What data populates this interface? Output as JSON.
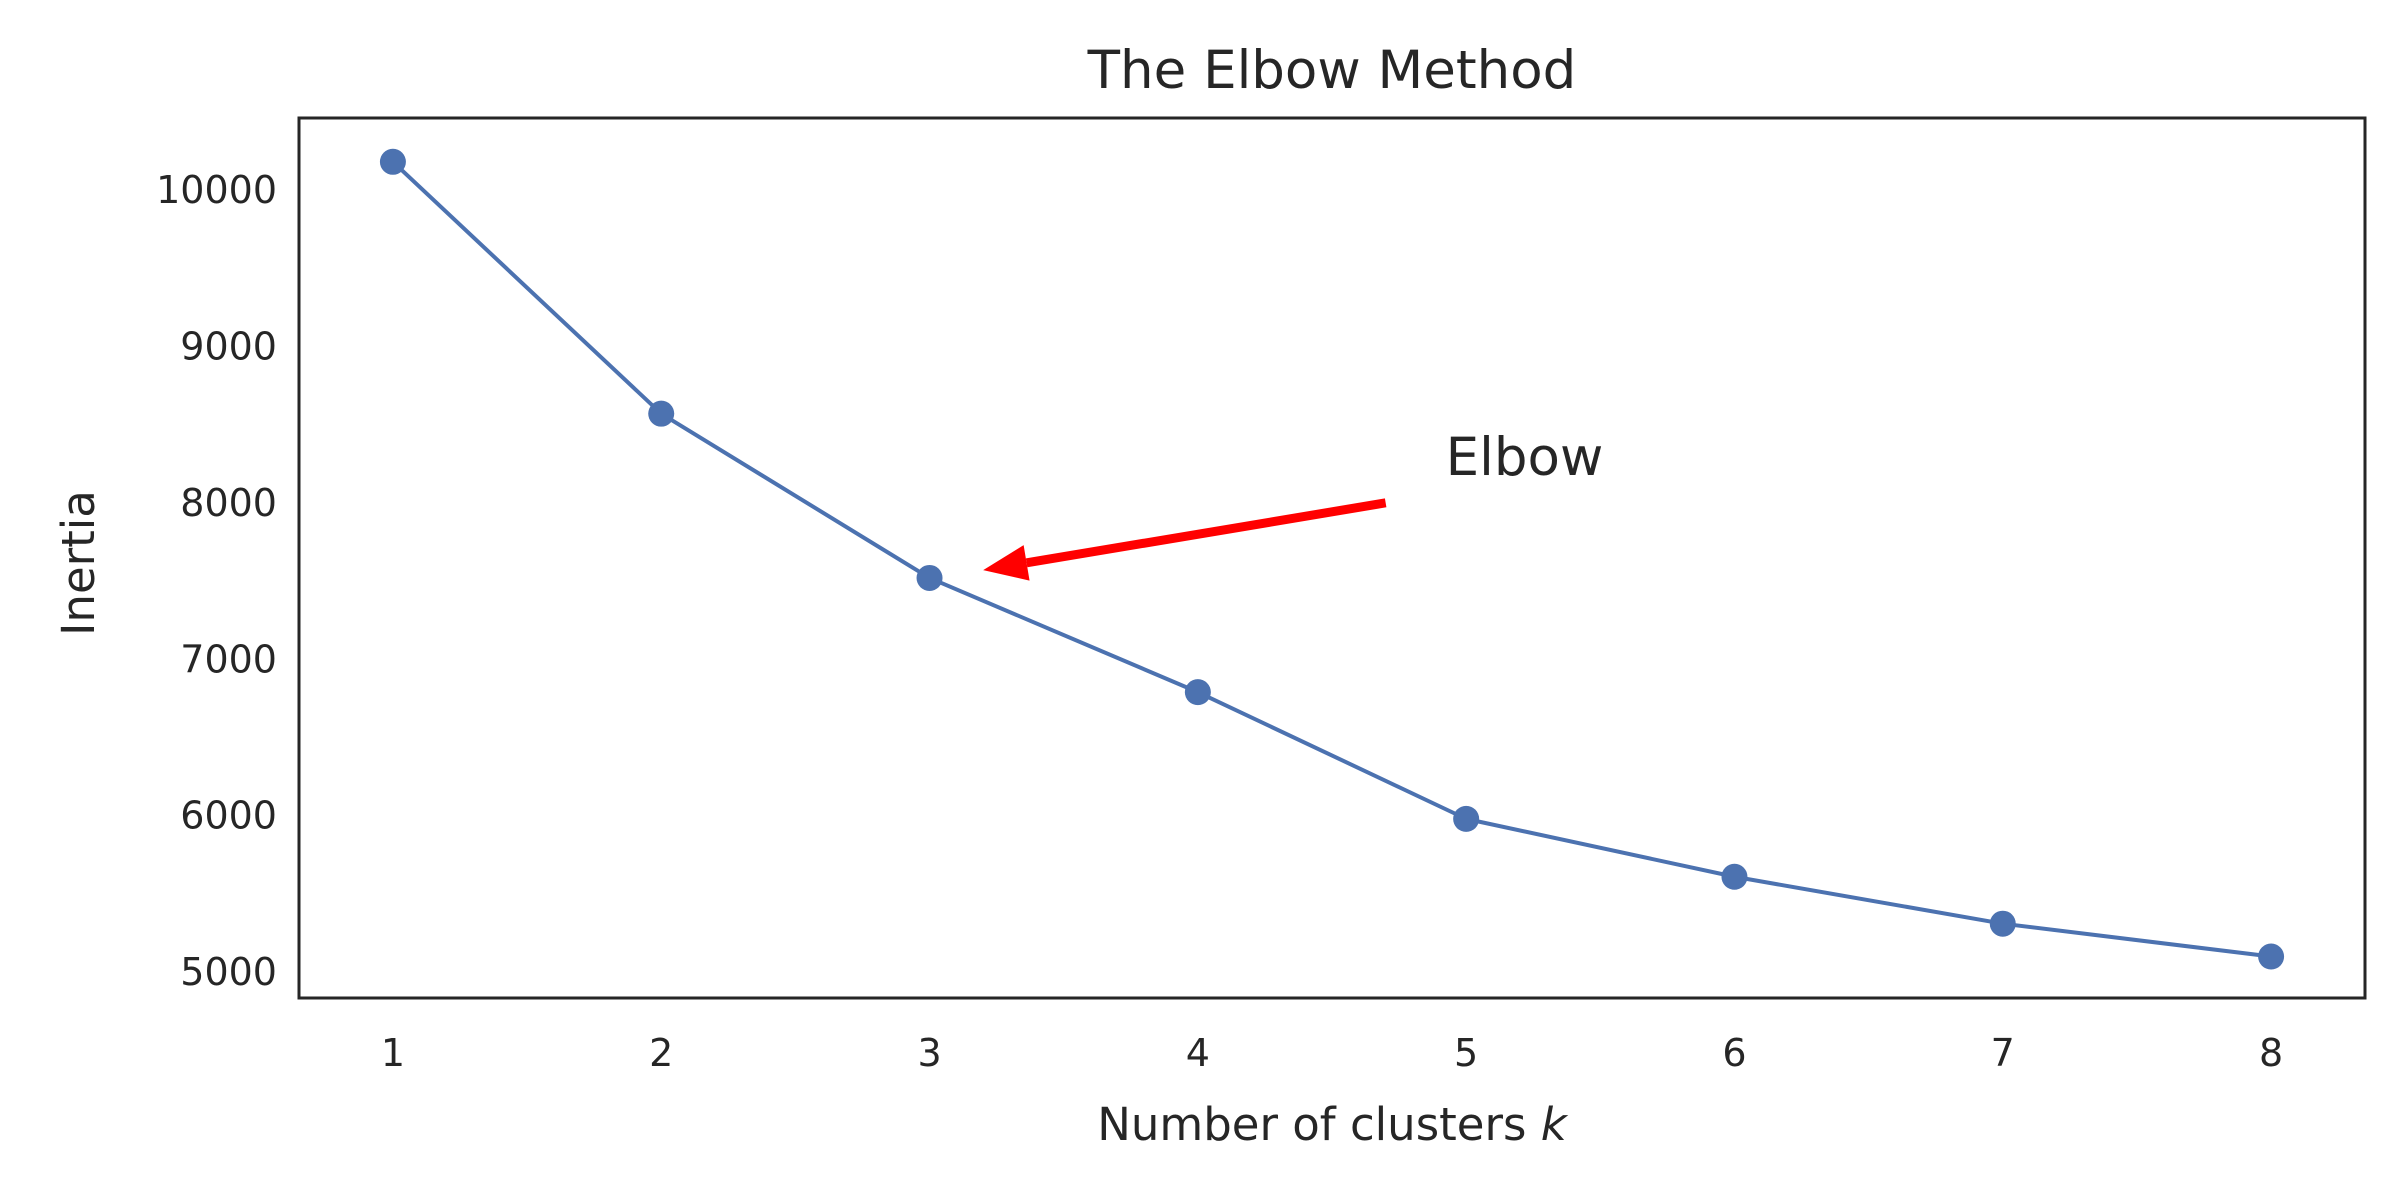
{
  "chart_data": {
    "type": "line",
    "title": "The Elbow Method",
    "xlabel": "Number of clusters",
    "xlabel_var": "k",
    "ylabel": "Inertia",
    "x": [
      1,
      2,
      3,
      4,
      5,
      6,
      7,
      8
    ],
    "series": [
      {
        "values": [
          10180,
          8570,
          7520,
          6790,
          5980,
          5610,
          5310,
          5100
        ],
        "color": "#4c72b0",
        "marker": "circle"
      }
    ],
    "xlim": [
      0.65,
      8.35
    ],
    "ylim": [
      4835,
      10460
    ],
    "xticks": [
      "1",
      "2",
      "3",
      "4",
      "5",
      "6",
      "7",
      "8"
    ],
    "yticks": [
      "5000",
      "6000",
      "7000",
      "8000",
      "9000",
      "10000"
    ],
    "grid": false,
    "annotations": [
      {
        "text": "Elbow",
        "target": [
          3.2,
          7570
        ],
        "text_anchor_point": [
          4.7,
          8000
        ],
        "color": "#ff0000"
      }
    ]
  }
}
